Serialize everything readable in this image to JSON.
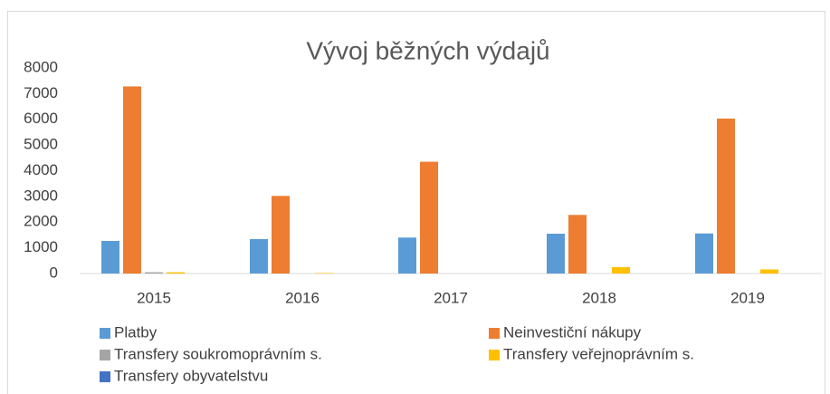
{
  "chart_data": {
    "type": "bar",
    "title": "Vývoj běžných výdajů",
    "categories": [
      "2015",
      "2016",
      "2017",
      "2018",
      "2019"
    ],
    "series": [
      {
        "name": "Platby",
        "color": "#5b9bd5",
        "values": [
          1270,
          1340,
          1400,
          1550,
          1560
        ]
      },
      {
        "name": "Neinvestiční nákupy",
        "color": "#ed7d31",
        "values": [
          7280,
          3020,
          4350,
          2280,
          6030
        ]
      },
      {
        "name": "Transfery soukromoprávním s.",
        "color": "#a5a5a5",
        "values": [
          50,
          0,
          0,
          0,
          0
        ]
      },
      {
        "name": "Transfery veřejnoprávním s.",
        "color": "#ffc000",
        "values": [
          50,
          20,
          0,
          250,
          160
        ]
      },
      {
        "name": "Transfery obyvatelstvu",
        "color": "#4472c4",
        "values": [
          0,
          0,
          0,
          0,
          0
        ]
      }
    ],
    "ylim": [
      0,
      8000
    ],
    "yticks": [
      0,
      1000,
      2000,
      3000,
      4000,
      5000,
      6000,
      7000,
      8000
    ],
    "grid": false,
    "legend": "bottom"
  }
}
